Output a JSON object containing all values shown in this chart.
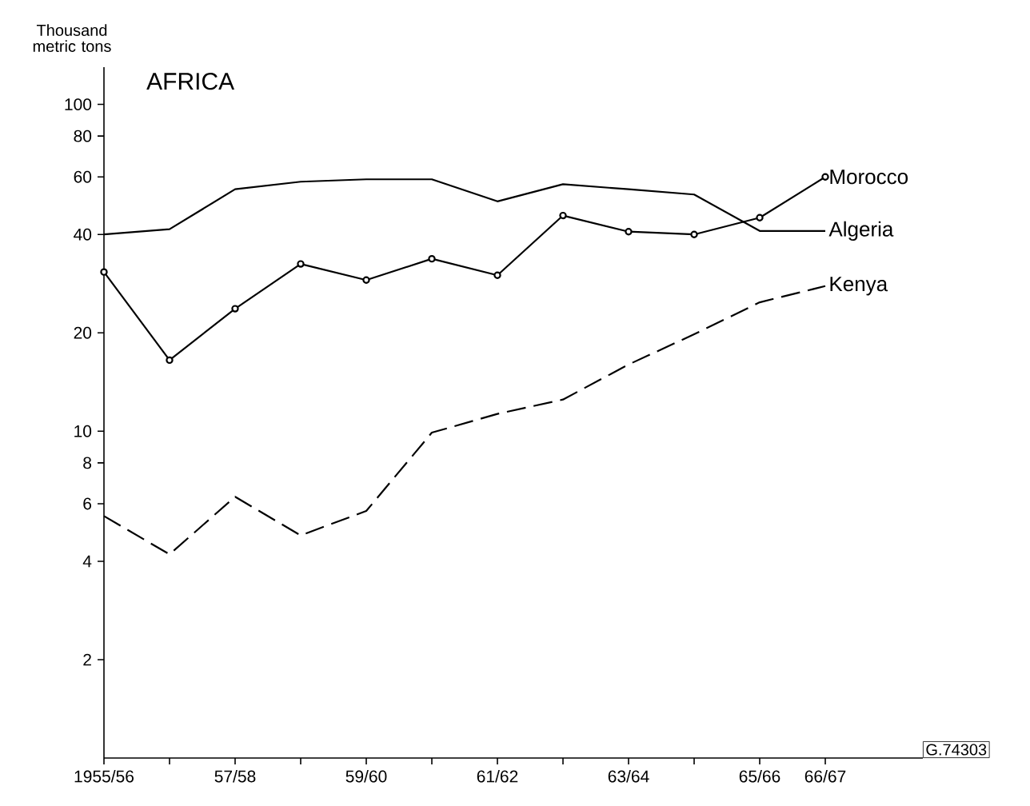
{
  "chart_data": {
    "type": "line",
    "title": "AFRICA",
    "ylabel": "Thousand metric tons",
    "categories": [
      "1955/56",
      null,
      "57/58",
      null,
      "59/60",
      null,
      "61/62",
      null,
      "63/64",
      null,
      "65/66",
      "66/67"
    ],
    "series": [
      {
        "name": "Morocco",
        "color": "#000000",
        "marker": "circle",
        "line_style": "solid",
        "values": [
          30.7,
          16.5,
          23.7,
          32.5,
          29,
          33.7,
          30,
          45.7,
          40.8,
          40,
          45,
          60
        ]
      },
      {
        "name": "Algeria",
        "color": "#000000",
        "marker": "none",
        "line_style": "solid",
        "values": [
          40,
          41.5,
          55,
          58,
          59,
          59,
          50.5,
          57,
          55,
          53,
          41,
          41
        ]
      },
      {
        "name": "Kenya",
        "color": "#000000",
        "marker": "none",
        "line_style": "dashed",
        "values": [
          5.5,
          4.2,
          6.3,
          4.8,
          5.7,
          9.9,
          11.3,
          12.5,
          16,
          19.8,
          24.8,
          27.8
        ]
      }
    ],
    "log": "y",
    "ylim": [
      1,
      130
    ],
    "yticks": [
      2,
      4,
      6,
      8,
      10,
      20,
      40,
      60,
      80,
      100
    ],
    "grid": false,
    "legend": false,
    "annotations": [
      "G.74303"
    ]
  }
}
